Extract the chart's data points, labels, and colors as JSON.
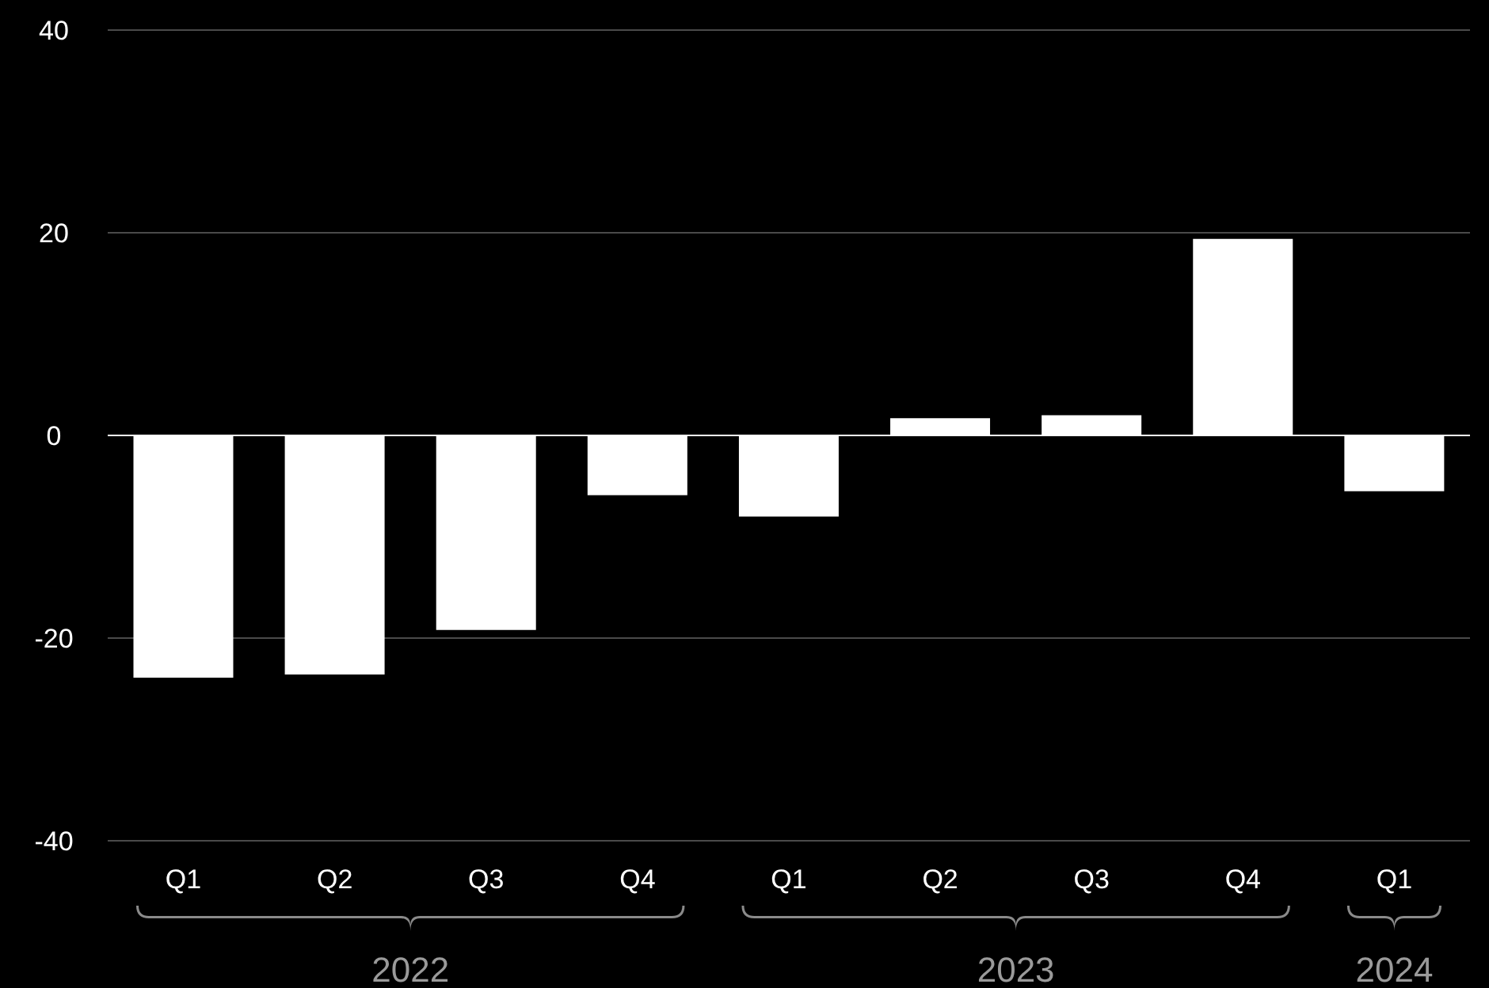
{
  "chart_data": {
    "type": "bar",
    "categories": [
      "Q1",
      "Q2",
      "Q3",
      "Q4",
      "Q1",
      "Q2",
      "Q3",
      "Q4",
      "Q1"
    ],
    "values": [
      -23.9,
      -23.6,
      -19.2,
      -5.9,
      -8.0,
      1.7,
      2.0,
      19.4,
      -5.5
    ],
    "color": "#ffffff",
    "ylim": [
      -40,
      40
    ],
    "yticks": [
      -40,
      -20,
      0,
      20,
      40
    ],
    "grid": "y",
    "annotations": [
      "2022",
      "2023",
      "2024"
    ]
  }
}
